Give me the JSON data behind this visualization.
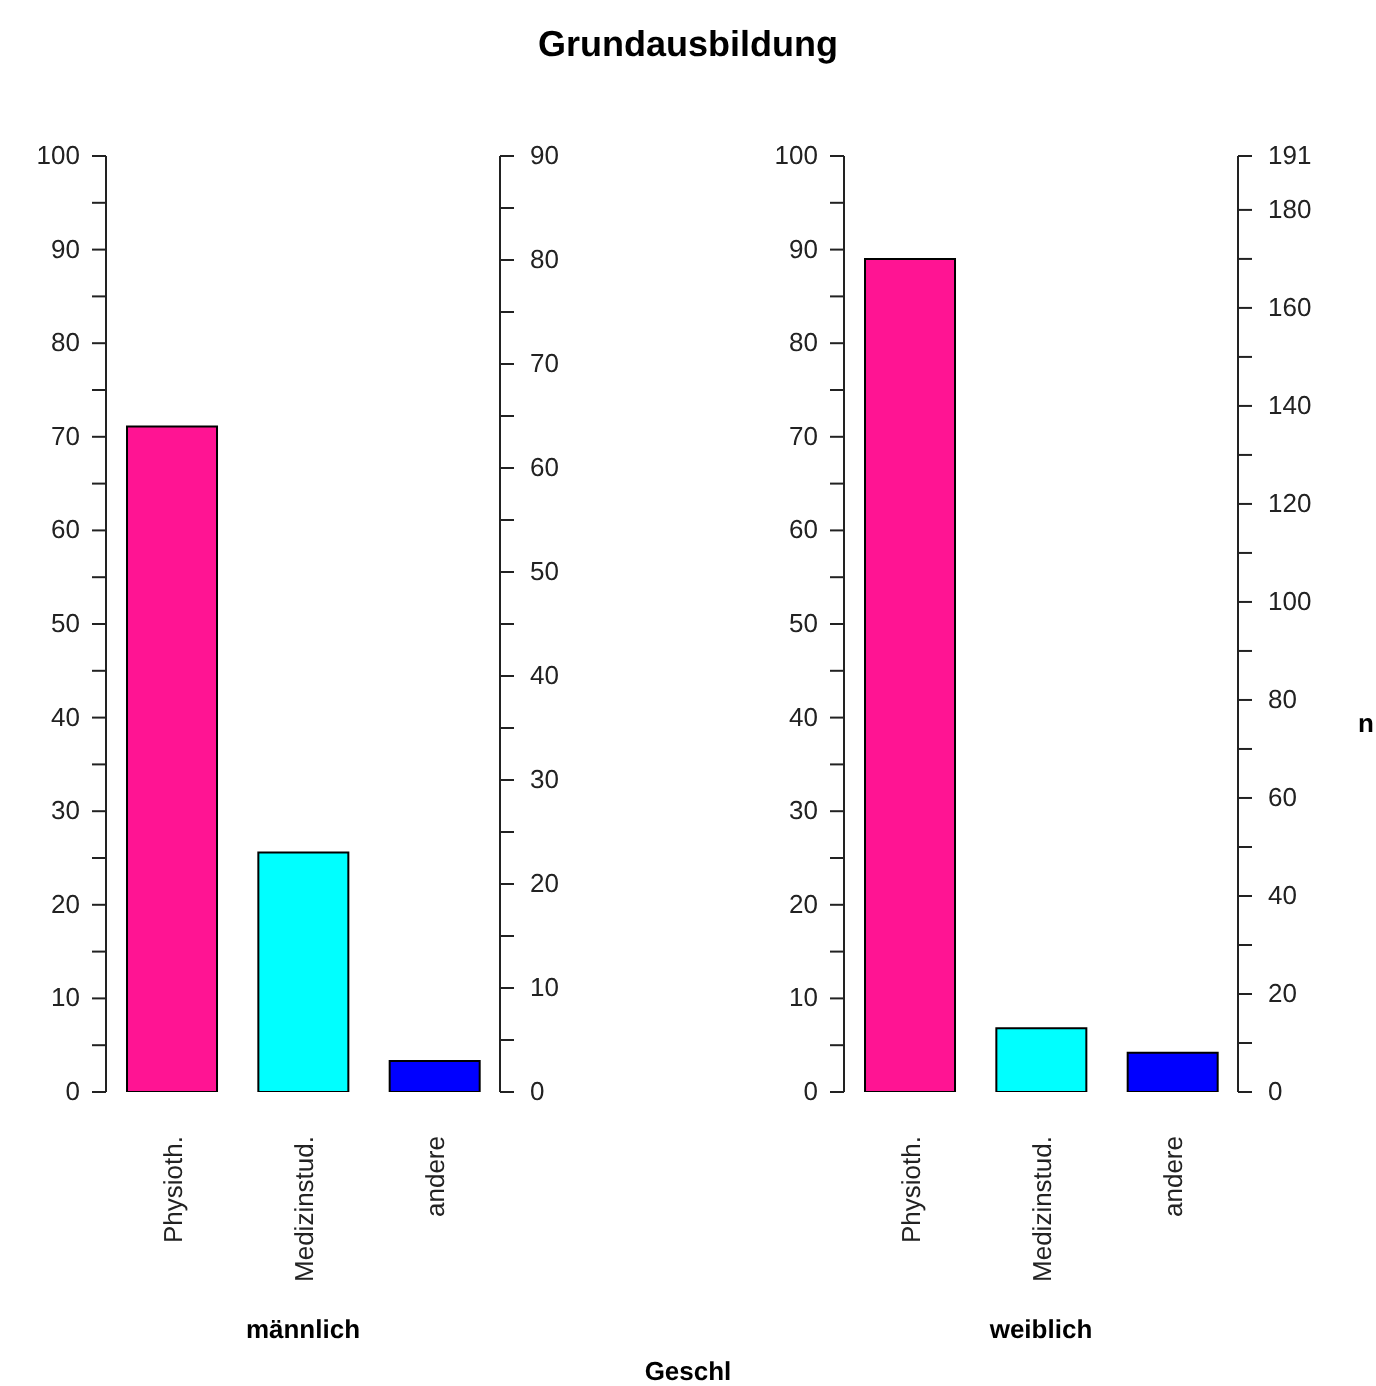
{
  "chart_data": [
    {
      "type": "bar",
      "title": "Grundausbildung",
      "xlabel": "männlich",
      "annotations": [
        "Geschl"
      ],
      "categories": [
        "Physioth.",
        "Medizinstud.",
        "andere"
      ],
      "values": [
        71.1,
        25.6,
        3.3
      ],
      "colors": [
        "#ff1493",
        "#00ffff",
        "#0000ff"
      ],
      "ylim": [
        0,
        100
      ],
      "yticks": [
        0,
        {
          "value": 5,
          "label": null
        },
        10,
        {
          "value": 15,
          "label": null
        },
        20,
        {
          "value": 25,
          "label": null
        },
        30,
        {
          "value": 35,
          "label": null
        },
        40,
        {
          "value": 45,
          "label": null
        },
        50,
        {
          "value": 55,
          "label": null
        },
        60,
        {
          "value": 65,
          "label": null
        },
        70,
        {
          "value": 75,
          "label": null
        },
        80,
        {
          "value": 85,
          "label": null
        },
        90,
        {
          "value": 95,
          "label": null
        },
        100
      ],
      "y2lim": [
        0,
        90
      ],
      "y2ticks": [
        0,
        {
          "value": 5,
          "label": null
        },
        10,
        {
          "value": 15,
          "label": null
        },
        20,
        {
          "value": 25,
          "label": null
        },
        30,
        {
          "value": 35,
          "label": null
        },
        40,
        {
          "value": 45,
          "label": null
        },
        50,
        {
          "value": 55,
          "label": null
        },
        60,
        {
          "value": 65,
          "label": null
        },
        70,
        {
          "value": 75,
          "label": null
        },
        80,
        {
          "value": 85,
          "label": null
        },
        90
      ]
    },
    {
      "type": "bar",
      "xlabel": "weiblich",
      "y2label": "n",
      "categories": [
        "Physioth.",
        "Medizinstud.",
        "andere"
      ],
      "values": [
        89.0,
        6.8,
        4.2
      ],
      "colors": [
        "#ff1493",
        "#00ffff",
        "#0000ff"
      ],
      "ylim": [
        0,
        100
      ],
      "yticks": [
        0,
        {
          "value": 5,
          "label": null
        },
        10,
        {
          "value": 15,
          "label": null
        },
        20,
        {
          "value": 25,
          "label": null
        },
        30,
        {
          "value": 35,
          "label": null
        },
        40,
        {
          "value": 45,
          "label": null
        },
        50,
        {
          "value": 55,
          "label": null
        },
        60,
        {
          "value": 65,
          "label": null
        },
        70,
        {
          "value": 75,
          "label": null
        },
        80,
        {
          "value": 85,
          "label": null
        },
        90,
        {
          "value": 95,
          "label": null
        },
        100
      ],
      "y2lim": [
        0,
        191
      ],
      "y2ticks": [
        0,
        {
          "value": 10,
          "label": null
        },
        20,
        {
          "value": 30,
          "label": null
        },
        40,
        {
          "value": 50,
          "label": null
        },
        60,
        {
          "value": 70,
          "label": null
        },
        80,
        {
          "value": 90,
          "label": null
        },
        100,
        {
          "value": 110,
          "label": null
        },
        120,
        {
          "value": 130,
          "label": null
        },
        140,
        {
          "value": 150,
          "label": null
        },
        160,
        {
          "value": 170,
          "label": null
        },
        180,
        191
      ]
    }
  ]
}
